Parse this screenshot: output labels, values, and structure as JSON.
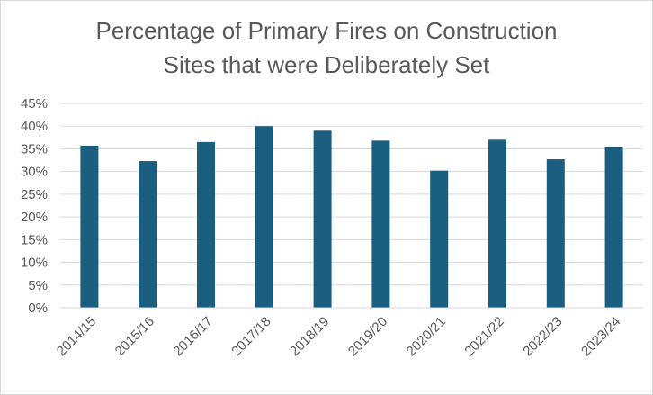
{
  "chart_data": {
    "type": "bar",
    "title_lines": [
      "Percentage of Primary Fires on Construction",
      "Sites that were Deliberately Set"
    ],
    "categories": [
      "2014/15",
      "2015/16",
      "2016/17",
      "2017/18",
      "2018/19",
      "2019/20",
      "2020/21",
      "2021/22",
      "2022/23",
      "2023/24"
    ],
    "values": [
      35.7,
      32.3,
      36.5,
      40.0,
      39.0,
      36.8,
      30.2,
      37.0,
      32.7,
      35.5
    ],
    "ylim": [
      0,
      45
    ],
    "yticks": [
      {
        "value": 0,
        "label": "0%"
      },
      {
        "value": 5,
        "label": "5%"
      },
      {
        "value": 10,
        "label": "10%"
      },
      {
        "value": 15,
        "label": "15%"
      },
      {
        "value": 20,
        "label": "20%"
      },
      {
        "value": 25,
        "label": "25%"
      },
      {
        "value": 30,
        "label": "30%"
      },
      {
        "value": 35,
        "label": "35%"
      },
      {
        "value": 40,
        "label": "40%"
      },
      {
        "value": 45,
        "label": "45%"
      }
    ],
    "grid": true,
    "legend": "none",
    "bar_color": "#1a5f80",
    "grid_color": "#d9d9d9",
    "text_color": "#595959"
  }
}
